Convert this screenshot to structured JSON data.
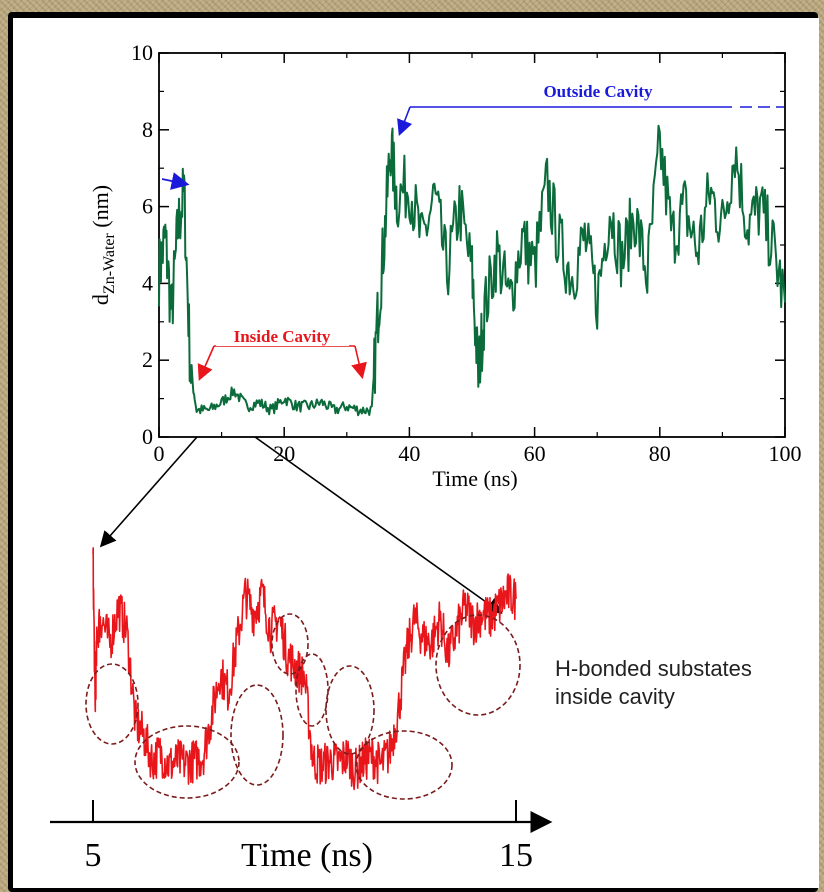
{
  "colors": {
    "main_series": "#0b6b3a",
    "zoom_series": "#e8161b",
    "inside_annotation": "#e8161b",
    "outside_annotation": "#1a1adb",
    "circles": "#7a1c1c"
  },
  "chart_data": [
    {
      "type": "line",
      "xlabel": "Time (ns)",
      "ylabel": "d",
      "ylabel_sub": "Zn-Water",
      "ylabel_unit": " (nm)",
      "xlim": [
        0,
        100
      ],
      "ylim": [
        0,
        10
      ],
      "x_ticks": [
        "0",
        "20",
        "40",
        "60",
        "80",
        "100"
      ],
      "y_ticks": [
        "0",
        "2",
        "4",
        "6",
        "8",
        "10"
      ],
      "annotations": {
        "inside": "Inside Cavity",
        "outside": "Outside Cavity"
      },
      "series": [
        {
          "x": [
            0,
            1,
            2,
            3,
            4,
            5,
            6,
            8,
            10,
            12,
            14,
            16,
            18,
            20,
            22,
            24,
            26,
            28,
            30,
            32,
            34,
            35,
            36,
            37,
            38,
            40,
            42,
            44,
            46,
            48,
            50,
            51,
            52,
            54,
            56,
            58,
            60,
            62,
            64,
            66,
            68,
            70,
            72,
            74,
            76,
            78,
            80,
            82,
            84,
            86,
            88,
            90,
            92,
            94,
            96,
            98,
            100
          ],
          "y": [
            4.3,
            5.2,
            3.2,
            5.4,
            6.4,
            1.8,
            0.7,
            0.7,
            0.9,
            1.2,
            0.8,
            0.9,
            0.7,
            1.0,
            0.8,
            0.8,
            0.9,
            0.7,
            0.8,
            0.7,
            0.7,
            3.3,
            5.2,
            7.6,
            6.2,
            6.6,
            5.0,
            6.3,
            4.3,
            6.0,
            4.3,
            1.6,
            3.3,
            4.8,
            3.5,
            5.2,
            4.4,
            6.6,
            5.0,
            4.2,
            5.2,
            3.6,
            6.0,
            4.6,
            5.8,
            4.2,
            7.6,
            5.2,
            6.0,
            4.8,
            6.4,
            5.5,
            7.5,
            5.5,
            6.0,
            5.0,
            3.5
          ]
        }
      ]
    },
    {
      "type": "line",
      "xlabel": "Time (ns)",
      "x_ticks": [
        "5",
        "15"
      ],
      "xlim": [
        5,
        15
      ],
      "note": [
        "H-bonded substates",
        "inside cavity"
      ],
      "series": [
        {
          "x": [
            5.0,
            5.05,
            5.1,
            5.2,
            5.4,
            5.6,
            5.8,
            6.0,
            6.2,
            6.4,
            6.6,
            6.8,
            7.0,
            7.2,
            7.4,
            7.6,
            7.8,
            8.0,
            8.2,
            8.4,
            8.6,
            8.8,
            9.0,
            9.2,
            9.4,
            9.6,
            9.8,
            10.0,
            10.2,
            10.4,
            10.6,
            10.8,
            11.0,
            11.2,
            11.4,
            11.6,
            11.8,
            12.0,
            12.2,
            12.4,
            12.6,
            12.8,
            13.0,
            13.2,
            13.4,
            13.6,
            13.8,
            14.0,
            14.2,
            14.4,
            14.6,
            14.8,
            15.0
          ],
          "y": [
            1.45,
            0.85,
            1.15,
            1.2,
            1.1,
            1.25,
            1.15,
            0.78,
            0.72,
            0.62,
            0.65,
            0.6,
            0.62,
            0.61,
            0.62,
            0.64,
            0.8,
            0.98,
            0.9,
            1.1,
            1.3,
            1.22,
            1.3,
            1.15,
            1.2,
            1.05,
            1.0,
            0.96,
            0.62,
            0.6,
            0.62,
            0.61,
            0.64,
            0.58,
            0.62,
            0.64,
            0.6,
            0.65,
            0.8,
            1.05,
            1.2,
            1.12,
            1.1,
            1.2,
            1.05,
            1.15,
            1.25,
            1.18,
            1.22,
            1.2,
            1.25,
            1.3,
            1.28
          ]
        }
      ]
    }
  ]
}
